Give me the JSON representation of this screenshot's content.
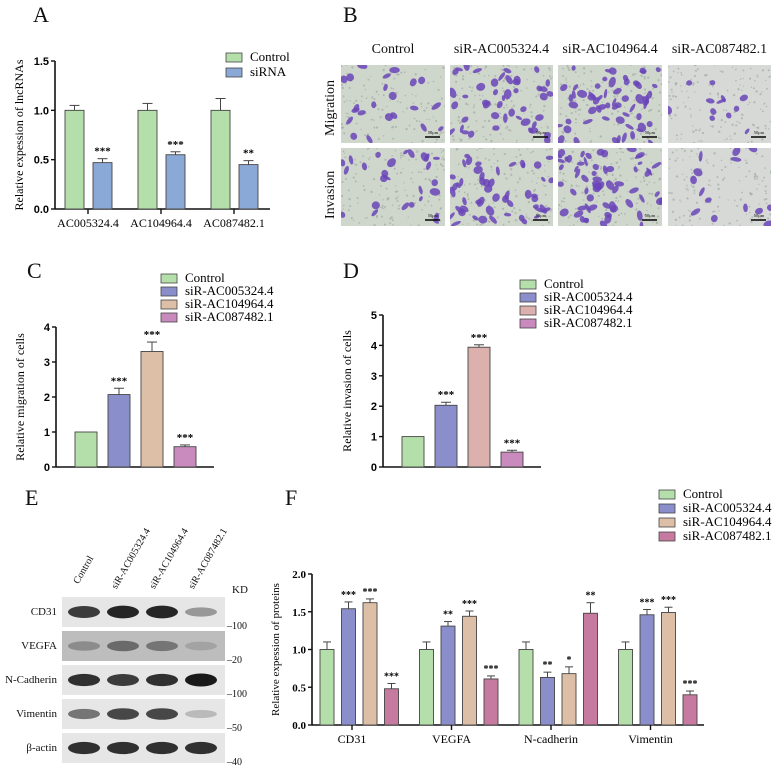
{
  "figure": {
    "panel_labels": [
      "A",
      "B",
      "C",
      "D",
      "E",
      "F"
    ]
  },
  "colors": {
    "control": "#b5dfaa",
    "sirna_blue": "#8ba9d6",
    "siR_AC005324_4": "#8a8fcc",
    "siR_AC104964_4": "#dcbfa6",
    "siR_AC104964_4_D": "#dcb1ad",
    "siR_AC087482_1": "#c98bbd",
    "siR_AC087482_1_F": "#c77a9f"
  },
  "chart_data": [
    {
      "panel": "A",
      "type": "bar",
      "title": "",
      "xlabel": "",
      "ylabel": "Relative expession of lncRNAs",
      "ylim": [
        0,
        1.5
      ],
      "yticks": [
        "0.0",
        "0.5",
        "1.0",
        "1.5"
      ],
      "categories": [
        "AC005324.4",
        "AC104964.4",
        "AC087482.1"
      ],
      "series": [
        {
          "name": "Control",
          "values": [
            1.0,
            1.0,
            1.0
          ],
          "errors": [
            0.05,
            0.07,
            0.12
          ]
        },
        {
          "name": "siRNA",
          "values": [
            0.47,
            0.55,
            0.45
          ],
          "errors": [
            0.04,
            0.03,
            0.04
          ]
        }
      ],
      "significance": [
        "***",
        "***",
        "**"
      ],
      "legend": [
        "Control",
        "siRNA"
      ],
      "legend_position": "top-right",
      "grid": false
    },
    {
      "panel": "C",
      "type": "bar",
      "ylabel": "Relative migration of cells",
      "ylim": [
        0,
        4
      ],
      "yticks": [
        "0",
        "1",
        "2",
        "3",
        "4"
      ],
      "categories": [
        "Control",
        "siR-AC005324.4",
        "siR-AC104964.4",
        "siR-AC087482.1"
      ],
      "values": [
        1.0,
        2.07,
        3.3,
        0.58
      ],
      "errors": [
        0,
        0.18,
        0.27,
        0.05
      ],
      "significance": [
        "",
        "***",
        "***",
        "***"
      ],
      "legend": [
        "Control",
        "siR-AC005324.4",
        "siR-AC104964.4",
        "siR-AC087482.1"
      ],
      "legend_position": "top",
      "grid": false
    },
    {
      "panel": "D",
      "type": "bar",
      "ylabel": "Relative invasion of  cells",
      "ylim": [
        0,
        5
      ],
      "yticks": [
        "0",
        "1",
        "2",
        "3",
        "4",
        "5"
      ],
      "categories": [
        "Control",
        "siR-AC005324.4",
        "siR-AC104964.4",
        "siR-AC087482.1"
      ],
      "values": [
        1.0,
        2.03,
        3.94,
        0.49
      ],
      "errors": [
        0,
        0.1,
        0.08,
        0.06
      ],
      "significance": [
        "",
        "***",
        "***",
        "***"
      ],
      "legend": [
        "Control",
        "siR-AC005324.4",
        "siR-AC104964.4",
        "siR-AC087482.1"
      ],
      "legend_position": "top-right",
      "grid": false
    },
    {
      "panel": "F",
      "type": "bar",
      "ylabel": "Relative expession of  proteins",
      "ylim": [
        0,
        2.0
      ],
      "yticks": [
        "0.0",
        "0.5",
        "1.0",
        "1.5",
        "2.0"
      ],
      "categories": [
        "CD31",
        "VEGFA",
        "N-cadherin",
        "Vimentin"
      ],
      "series": [
        {
          "name": "Control",
          "values": [
            1.0,
            1.0,
            1.0,
            1.0
          ],
          "errors": [
            0.1,
            0.1,
            0.1,
            0.1
          ]
        },
        {
          "name": "siR-AC005324.4",
          "values": [
            1.54,
            1.31,
            0.63,
            1.46
          ],
          "errors": [
            0.09,
            0.06,
            0.07,
            0.07
          ]
        },
        {
          "name": "siR-AC104964.4",
          "values": [
            1.62,
            1.44,
            0.68,
            1.49
          ],
          "errors": [
            0.05,
            0.07,
            0.09,
            0.07
          ]
        },
        {
          "name": "siR-AC087482.1",
          "values": [
            0.48,
            0.61,
            1.48,
            0.4
          ],
          "errors": [
            0.07,
            0.04,
            0.14,
            0.05
          ]
        }
      ],
      "significance": [
        [
          "",
          "***",
          "***",
          "***"
        ],
        [
          "",
          "**",
          "***",
          "***"
        ],
        [
          "",
          "**",
          "*",
          "**"
        ],
        [
          "",
          "***",
          "***",
          "***"
        ]
      ],
      "legend": [
        "Control",
        "siR-AC005324.4",
        "siR-AC104964.4",
        "siR-AC087482.1"
      ],
      "legend_position": "top-right",
      "grid": false
    }
  ],
  "panel_B": {
    "columns": [
      "Control",
      "siR-AC005324.4",
      "siR-AC104964.4",
      "siR-AC087482.1"
    ],
    "rows": [
      "Migration",
      "Invasion"
    ],
    "scale_bar": "50μm",
    "cell_density": [
      [
        22,
        45,
        60,
        12
      ],
      [
        26,
        50,
        62,
        14
      ]
    ]
  },
  "panel_E": {
    "lanes": [
      "Control",
      "siR-AC005324.4",
      "siR-AC104964.4",
      "siR-AC087482.1"
    ],
    "unit": "KD",
    "blots": [
      {
        "name": "CD31",
        "marker": "100",
        "intensity": [
          0.85,
          0.95,
          0.95,
          0.45
        ]
      },
      {
        "name": "VEGFA",
        "marker": "20",
        "intensity": [
          0.5,
          0.65,
          0.6,
          0.4
        ]
      },
      {
        "name": "N-Cadherin",
        "marker": "100",
        "intensity": [
          0.9,
          0.85,
          0.9,
          1.0
        ]
      },
      {
        "name": "Vimentin",
        "marker": "50",
        "intensity": [
          0.6,
          0.8,
          0.8,
          0.3
        ]
      },
      {
        "name": "β-actin",
        "marker": "40",
        "intensity": [
          0.9,
          0.9,
          0.9,
          0.9
        ]
      }
    ]
  }
}
